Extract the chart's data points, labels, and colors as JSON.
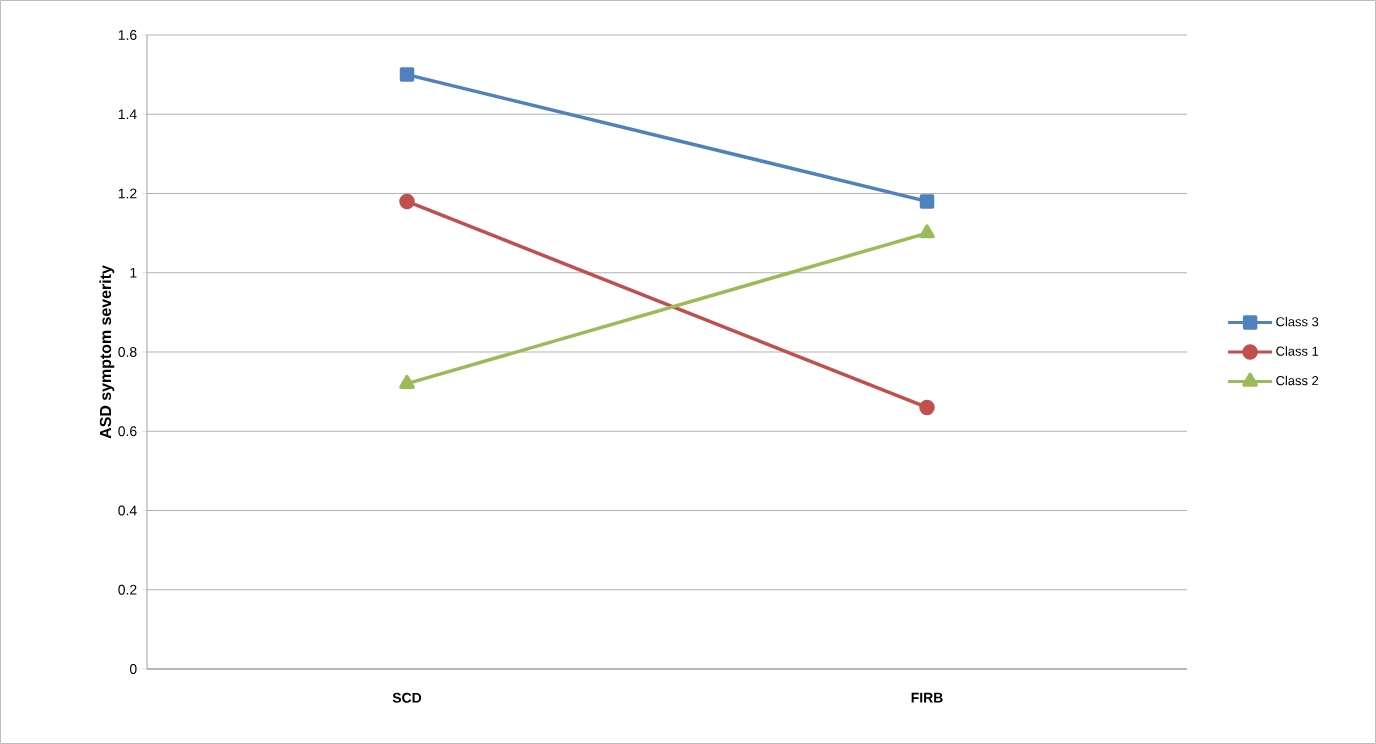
{
  "chart_data": {
    "type": "line",
    "ylabel": "ASD symptom severity",
    "categories": [
      "SCD",
      "FIRB"
    ],
    "series": [
      {
        "name": "Class 3",
        "color": "#4f81bd",
        "marker": "square",
        "values": [
          1.5,
          1.18
        ]
      },
      {
        "name": "Class 1",
        "color": "#c0504d",
        "marker": "circle",
        "values": [
          1.18,
          0.66
        ]
      },
      {
        "name": "Class 2",
        "color": "#9bbb59",
        "marker": "triangle",
        "values": [
          0.72,
          1.1
        ]
      }
    ],
    "ylim": [
      0,
      1.6
    ],
    "yticks": [
      0,
      0.2,
      0.4,
      0.6,
      0.8,
      1,
      1.2,
      1.4,
      1.6
    ],
    "grid": "y",
    "legend": "right",
    "line_style": "solid"
  }
}
